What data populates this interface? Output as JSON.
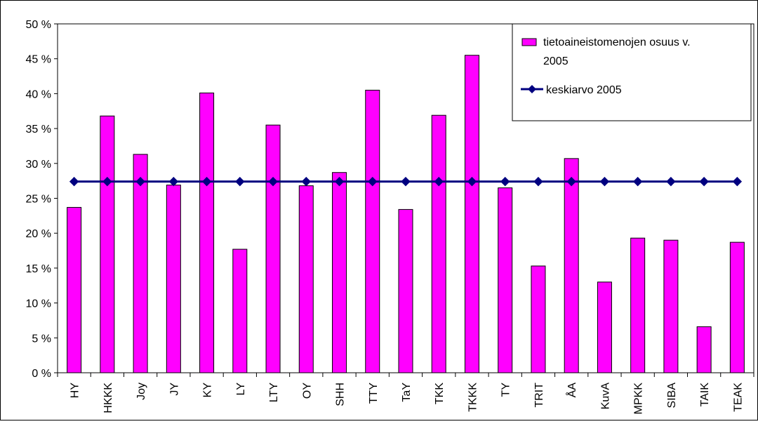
{
  "chart_data": {
    "type": "bar",
    "categories": [
      "HY",
      "HKKK",
      "Joy",
      "JY",
      "KY",
      "LY",
      "LTY",
      "OY",
      "SHH",
      "TTY",
      "TaY",
      "TKK",
      "TKKK",
      "TY",
      "TRIT",
      "ÅA",
      "KuvA",
      "MPKK",
      "SIBA",
      "TAIK",
      "TEAK"
    ],
    "series": [
      {
        "name": "tietoaineistomenojen osuus v. 2005",
        "type": "bar",
        "color": "#ff00ff",
        "values": [
          23.7,
          36.8,
          31.3,
          26.9,
          40.1,
          17.7,
          35.5,
          26.8,
          28.7,
          40.5,
          23.4,
          36.9,
          45.5,
          26.5,
          15.3,
          30.7,
          13.0,
          19.3,
          19.0,
          6.6,
          18.7
        ]
      },
      {
        "name": "keskiarvo 2005",
        "type": "line",
        "color": "#000080",
        "values": [
          27.4,
          27.4,
          27.4,
          27.4,
          27.4,
          27.4,
          27.4,
          27.4,
          27.4,
          27.4,
          27.4,
          27.4,
          27.4,
          27.4,
          27.4,
          27.4,
          27.4,
          27.4,
          27.4,
          27.4,
          27.4
        ]
      }
    ],
    "ylim": [
      0,
      50
    ],
    "yticks": [
      0,
      5,
      10,
      15,
      20,
      25,
      30,
      35,
      40,
      45,
      50
    ],
    "ytick_labels": [
      "0 %",
      "5 %",
      "10 %",
      "15 %",
      "20 %",
      "25 %",
      "30 %",
      "35 %",
      "40 %",
      "45 %",
      "50 %"
    ],
    "legend_position": "top-right",
    "legend_lines": [
      [
        "tietoaineistomenojen osuus v.",
        "2005"
      ],
      [
        "keskiarvo 2005"
      ]
    ],
    "grid": false
  }
}
